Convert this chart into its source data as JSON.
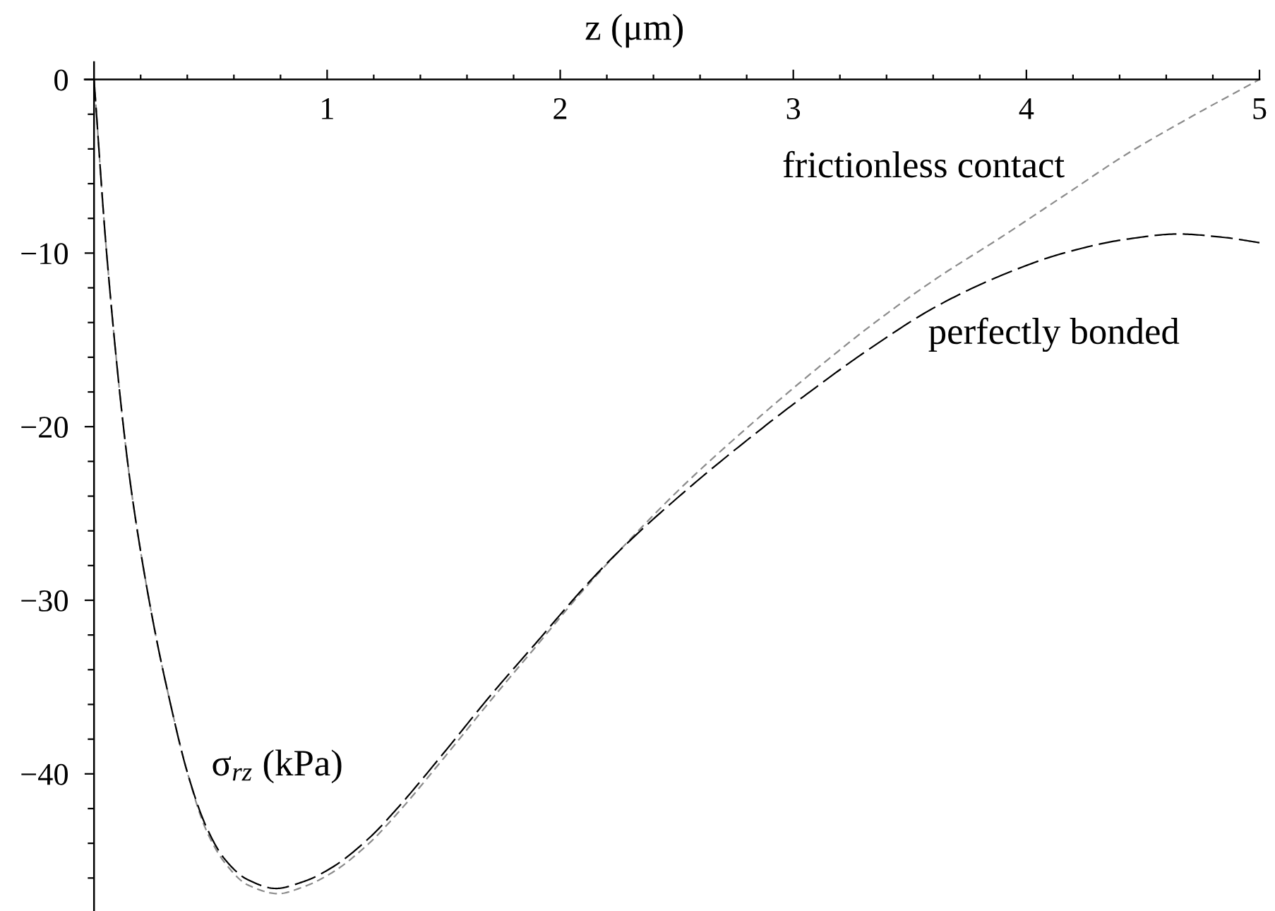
{
  "chart_data": {
    "type": "line",
    "xlabel": "z (μm)",
    "ylabel": "σ$_{rz}$ (kPa)",
    "line_style": "dashed",
    "xlim": [
      -0.04,
      5
    ],
    "ylim": [
      -47.9,
      1
    ],
    "xticks": [
      1,
      2,
      3,
      4,
      5,
      {
        "value": 0.2,
        "label": null
      },
      {
        "value": 0.4,
        "label": null
      },
      {
        "value": 0.6,
        "label": null
      },
      {
        "value": 0.8,
        "label": null
      },
      {
        "value": 1.2,
        "label": null
      },
      {
        "value": 1.4,
        "label": null
      },
      {
        "value": 1.6,
        "label": null
      },
      {
        "value": 1.8,
        "label": null
      },
      {
        "value": 2.2,
        "label": null
      },
      {
        "value": 2.4,
        "label": null
      },
      {
        "value": 2.6,
        "label": null
      },
      {
        "value": 2.8,
        "label": null
      },
      {
        "value": 3.2,
        "label": null
      },
      {
        "value": 3.4,
        "label": null
      },
      {
        "value": 3.6,
        "label": null
      },
      {
        "value": 3.8,
        "label": null
      },
      {
        "value": 4.2,
        "label": null
      },
      {
        "value": 4.4,
        "label": null
      },
      {
        "value": 4.6,
        "label": null
      },
      {
        "value": 4.8,
        "label": null
      }
    ],
    "yticks": [
      0,
      {
        "value": -10,
        "label": "−10"
      },
      {
        "value": -20,
        "label": "−20"
      },
      {
        "value": -30,
        "label": "−30"
      },
      {
        "value": -40,
        "label": "−40"
      },
      {
        "value": -2,
        "label": null
      },
      {
        "value": -4,
        "label": null
      },
      {
        "value": -6,
        "label": null
      },
      {
        "value": -8,
        "label": null
      },
      {
        "value": -12,
        "label": null
      },
      {
        "value": -14,
        "label": null
      },
      {
        "value": -16,
        "label": null
      },
      {
        "value": -18,
        "label": null
      },
      {
        "value": -22,
        "label": null
      },
      {
        "value": -24,
        "label": null
      },
      {
        "value": -26,
        "label": null
      },
      {
        "value": -28,
        "label": null
      },
      {
        "value": -32,
        "label": null
      },
      {
        "value": -34,
        "label": null
      },
      {
        "value": -36,
        "label": null
      },
      {
        "value": -38,
        "label": null
      },
      {
        "value": -42,
        "label": null
      },
      {
        "value": -44,
        "label": null
      },
      {
        "value": -46,
        "label": null
      }
    ],
    "series": [
      {
        "name": "frictionless contact",
        "color": "#8c8c8c",
        "x": [
          0,
          0.054,
          0.14,
          0.18,
          0.26,
          0.32,
          0.4,
          0.48,
          0.56,
          0.66,
          0.79,
          0.9,
          1.02,
          1.18,
          1.3,
          1.5,
          1.7,
          1.9,
          2.1,
          2.25,
          2.52,
          2.79,
          3.07,
          3.34,
          3.61,
          3.89,
          4.16,
          4.43,
          4.7,
          5.0
        ],
        "values": [
          0,
          -10,
          -21.6,
          -25.5,
          -31.7,
          -35.5,
          -39.9,
          -43.2,
          -45.1,
          -46.4,
          -46.9,
          -46.5,
          -45.7,
          -44.0,
          -42.3,
          -39.1,
          -35.8,
          -32.6,
          -29.4,
          -27.2,
          -23.5,
          -20.2,
          -17.0,
          -14.1,
          -11.5,
          -9.1,
          -6.7,
          -4.3,
          -2.2,
          0
        ]
      },
      {
        "name": "perfectly bonded",
        "color": "#000000",
        "x": [
          0,
          0.054,
          0.14,
          0.18,
          0.26,
          0.32,
          0.4,
          0.48,
          0.56,
          0.66,
          0.78,
          0.9,
          1.02,
          1.18,
          1.3,
          1.5,
          1.7,
          1.9,
          2.1,
          2.25,
          2.52,
          2.79,
          3.07,
          3.34,
          3.61,
          3.89,
          4.16,
          4.43,
          4.65,
          4.85,
          5.0
        ],
        "values": [
          0,
          -10,
          -21.6,
          -25.5,
          -31.7,
          -35.5,
          -39.9,
          -43.0,
          -44.9,
          -46.1,
          -46.6,
          -46.2,
          -45.4,
          -43.7,
          -42.0,
          -38.8,
          -35.5,
          -32.4,
          -29.3,
          -27.2,
          -23.9,
          -20.9,
          -18.0,
          -15.4,
          -13.1,
          -11.3,
          -10.0,
          -9.2,
          -8.9,
          -9.1,
          -9.4
        ]
      }
    ]
  }
}
